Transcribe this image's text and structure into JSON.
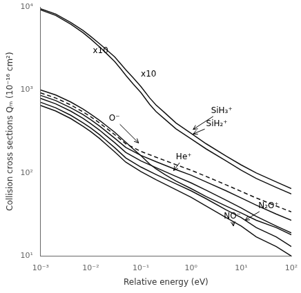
{
  "chart_data": {
    "type": "line",
    "xlabel": "Relative energy (eV)",
    "ylabel": "Collision cross sections Qₘ (10⁻¹⁶ cm²)",
    "log": true,
    "grid": false,
    "marker": "none",
    "xlim": [
      0.001,
      100
    ],
    "ylim": [
      10,
      10000
    ],
    "xticks": [
      {
        "value": 0.001,
        "label": "10⁻³"
      },
      {
        "value": 0.01,
        "label": "10⁻²"
      },
      {
        "value": 0.1,
        "label": "10⁻¹"
      },
      {
        "value": 1,
        "label": "10⁰"
      },
      {
        "value": 10,
        "label": "10¹"
      },
      {
        "value": 100,
        "label": "10²"
      }
    ],
    "yticks": [
      {
        "value": 10,
        "label": "10¹"
      },
      {
        "value": 100,
        "label": "10²"
      },
      {
        "value": 1000,
        "label": "10³"
      },
      {
        "value": 10000,
        "label": "10⁴"
      }
    ],
    "series": [
      {
        "color": "#111111",
        "line_style": "solid",
        "x": [
          0.001,
          0.002,
          0.004,
          0.007,
          0.01,
          0.015,
          0.02,
          0.03,
          0.04,
          0.05,
          0.07,
          0.1,
          0.15,
          0.2,
          0.3,
          0.5,
          1.0,
          2.0,
          5.0,
          10.0,
          20.0,
          50.0,
          100
        ],
        "values": [
          9500,
          8200,
          6500,
          5200,
          4400,
          3600,
          3100,
          2500,
          2050,
          1750,
          1400,
          1100,
          800,
          660,
          530,
          400,
          300,
          225,
          160,
          125,
          100,
          78,
          65
        ]
      },
      {
        "color": "#111111",
        "line_style": "solid",
        "x": [
          0.001,
          0.002,
          0.004,
          0.007,
          0.01,
          0.015,
          0.02,
          0.03,
          0.04,
          0.05,
          0.07,
          0.1,
          0.15,
          0.2,
          0.3,
          0.5,
          1.0,
          2.0,
          5.0,
          10.0,
          20.0,
          50.0,
          100
        ],
        "values": [
          9200,
          7900,
          6200,
          4900,
          4100,
          3300,
          2800,
          2200,
          1780,
          1500,
          1180,
          930,
          670,
          550,
          445,
          340,
          258,
          195,
          140,
          108,
          86,
          67,
          56
        ]
      },
      {
        "color": "#111111",
        "line_style": "solid",
        "x": [
          0.001,
          0.002,
          0.004,
          0.007,
          0.01,
          0.015,
          0.02,
          0.03,
          0.04,
          0.05,
          0.07,
          0.1,
          0.15,
          0.2,
          0.3,
          0.5,
          1.0,
          2.0,
          5.0,
          10.0,
          20.0,
          50.0,
          100
        ],
        "values": [
          1000,
          870,
          715,
          590,
          510,
          430,
          375,
          310,
          265,
          235,
          195,
          162,
          128,
          112,
          96,
          80,
          65,
          52,
          40,
          33,
          27,
          22,
          18
        ]
      },
      {
        "color": "#111111",
        "line_style": "dashed",
        "x": [
          0.001,
          0.002,
          0.004,
          0.007,
          0.01,
          0.015,
          0.02,
          0.03,
          0.05,
          0.1,
          0.2,
          0.5,
          1.0,
          2.0,
          5.0,
          10.0,
          20.0,
          50.0,
          100
        ],
        "values": [
          920,
          800,
          660,
          545,
          475,
          400,
          350,
          290,
          225,
          182,
          155,
          126,
          108,
          91,
          72,
          60,
          50,
          40,
          34
        ]
      },
      {
        "color": "#111111",
        "line_style": "solid",
        "x": [
          0.001,
          0.002,
          0.004,
          0.007,
          0.01,
          0.015,
          0.02,
          0.03,
          0.05,
          0.1,
          0.2,
          0.5,
          1.0,
          2.0,
          5.0,
          10.0,
          20.0,
          50.0,
          100
        ],
        "values": [
          860,
          745,
          610,
          505,
          438,
          367,
          320,
          263,
          203,
          163,
          137,
          110,
          94,
          78,
          61,
          50,
          41,
          32,
          27
        ]
      },
      {
        "color": "#111111",
        "line_style": "solid",
        "x": [
          0.001,
          0.002,
          0.004,
          0.007,
          0.01,
          0.015,
          0.02,
          0.03,
          0.05,
          0.1,
          0.2,
          0.5,
          1.0,
          2.0,
          5.0,
          10.0,
          20.0,
          50.0,
          100
        ],
        "values": [
          790,
          680,
          555,
          455,
          393,
          328,
          284,
          232,
          177,
          140,
          116,
          91,
          76,
          62,
          47,
          38,
          30,
          23,
          19
        ]
      },
      {
        "color": "#111111",
        "line_style": "solid",
        "x": [
          0.001,
          0.002,
          0.004,
          0.007,
          0.01,
          0.015,
          0.02,
          0.03,
          0.05,
          0.1,
          0.2,
          0.5,
          1.0,
          2.0,
          5.0,
          10.0,
          20.0,
          50.0,
          100
        ],
        "values": [
          710,
          610,
          495,
          403,
          348,
          289,
          249,
          202,
          152,
          118,
          96,
          74,
          61,
          49,
          36,
          29,
          22,
          17,
          13
        ]
      },
      {
        "color": "#111111",
        "line_style": "solid",
        "x": [
          0.001,
          0.002,
          0.004,
          0.007,
          0.01,
          0.015,
          0.02,
          0.03,
          0.05,
          0.1,
          0.2,
          0.5,
          1.0,
          2.0,
          5.0,
          10.0,
          20.0,
          50.0,
          100
        ],
        "values": [
          650,
          558,
          452,
          366,
          315,
          260,
          223,
          180,
          135,
          104,
          83,
          63,
          51,
          40,
          29,
          23,
          17,
          13,
          10
        ]
      }
    ],
    "annotations": [
      {
        "text": "O⁻",
        "x": 0.023,
        "y": 450,
        "arrow_x": 0.09,
        "arrow_y": 230
      },
      {
        "text": "SiH₃⁺",
        "x": 2.5,
        "y": 560,
        "arrow_x": 1.1,
        "arrow_y": 335
      },
      {
        "text": "SiH₂⁺",
        "x": 2.0,
        "y": 390,
        "arrow_x": 1.1,
        "arrow_y": 295
      },
      {
        "text": "He⁺",
        "x": 0.5,
        "y": 155,
        "arrow_x": 0.45,
        "arrow_y": 107
      },
      {
        "text": "N₂O⁺",
        "x": 22,
        "y": 40,
        "arrow_x": 12,
        "arrow_y": 27
      },
      {
        "text": "NO⁻",
        "x": 4.5,
        "y": 30,
        "arrow_x": 7,
        "arrow_y": 23
      },
      {
        "text": "x10",
        "x": 0.011,
        "y": 2800
      },
      {
        "text": "x10",
        "x": 0.1,
        "y": 1450
      }
    ]
  }
}
